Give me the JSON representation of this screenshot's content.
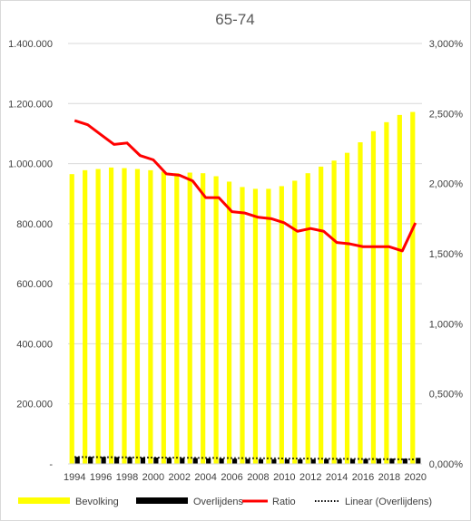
{
  "chart_data": {
    "type": "bar",
    "title": "65-74",
    "categories": [
      "1994",
      "1995",
      "1996",
      "1997",
      "1998",
      "1999",
      "2000",
      "2001",
      "2002",
      "2003",
      "2004",
      "2005",
      "2006",
      "2007",
      "2008",
      "2009",
      "2010",
      "2011",
      "2012",
      "2013",
      "2014",
      "2015",
      "2016",
      "2017",
      "2018",
      "2019",
      "2020"
    ],
    "x_tick_labels": [
      "1994",
      "1996",
      "1998",
      "2000",
      "2002",
      "2004",
      "2006",
      "2008",
      "2010",
      "2012",
      "2014",
      "2016",
      "2018",
      "2020"
    ],
    "y_left": {
      "ylim": [
        0,
        1400000
      ],
      "ticks": [
        0,
        200000,
        400000,
        600000,
        800000,
        1000000,
        1200000,
        1400000
      ],
      "tick_labels": [
        "-",
        "200.000",
        "400.000",
        "600.000",
        "800.000",
        "1.000.000",
        "1.200.000",
        "1.400.000"
      ]
    },
    "y_right": {
      "ylim": [
        0,
        3.0
      ],
      "ticks": [
        0,
        0.5,
        1.0,
        1.5,
        2.0,
        2.5,
        3.0
      ],
      "tick_labels": [
        "0,000%",
        "0,500%",
        "1,000%",
        "1,500%",
        "2,000%",
        "2,500%",
        "3,000%"
      ]
    },
    "series": [
      {
        "name": "Bevolking",
        "type": "bar",
        "axis": "left",
        "color": "#ffff00",
        "values": [
          965000,
          978000,
          982000,
          987000,
          985000,
          982000,
          978000,
          973000,
          968000,
          970000,
          968000,
          958000,
          940000,
          922000,
          916000,
          916000,
          925000,
          943000,
          968000,
          990000,
          1010000,
          1036000,
          1071000,
          1108000,
          1138000,
          1162000,
          1172000
        ]
      },
      {
        "name": "Overlijdens",
        "type": "bar",
        "axis": "left",
        "color": "#000000",
        "values": [
          23500,
          23500,
          23300,
          22700,
          22400,
          21500,
          21200,
          20100,
          19900,
          19600,
          18400,
          18200,
          17200,
          16600,
          16000,
          15900,
          15600,
          15500,
          15900,
          16300,
          15800,
          16300,
          16500,
          17100,
          17600,
          17600,
          20000
        ]
      },
      {
        "name": "Ratio",
        "type": "line",
        "axis": "right",
        "color": "#ff0000",
        "values": [
          2.45,
          2.42,
          2.35,
          2.28,
          2.29,
          2.2,
          2.17,
          2.07,
          2.06,
          2.02,
          1.9,
          1.9,
          1.8,
          1.79,
          1.76,
          1.75,
          1.72,
          1.66,
          1.68,
          1.66,
          1.58,
          1.57,
          1.55,
          1.55,
          1.55,
          1.52,
          1.72
        ]
      },
      {
        "name": "Linear (Overlijdens)",
        "type": "trendline",
        "axis": "left",
        "color": "#000000",
        "style": "dotted",
        "values": [
          23000,
          22700,
          22400,
          22100,
          21800,
          21500,
          21200,
          20900,
          20600,
          20300,
          20000,
          19700,
          19400,
          19100,
          18800,
          18500,
          18200,
          17900,
          17600,
          17300,
          17000,
          16700,
          16400,
          16100,
          15800,
          15500,
          15200
        ]
      }
    ],
    "legend": {
      "position": "bottom",
      "entries": [
        "Bevolking",
        "Overlijdens",
        "Ratio",
        "Linear (Overlijdens)"
      ]
    },
    "grid": true
  }
}
